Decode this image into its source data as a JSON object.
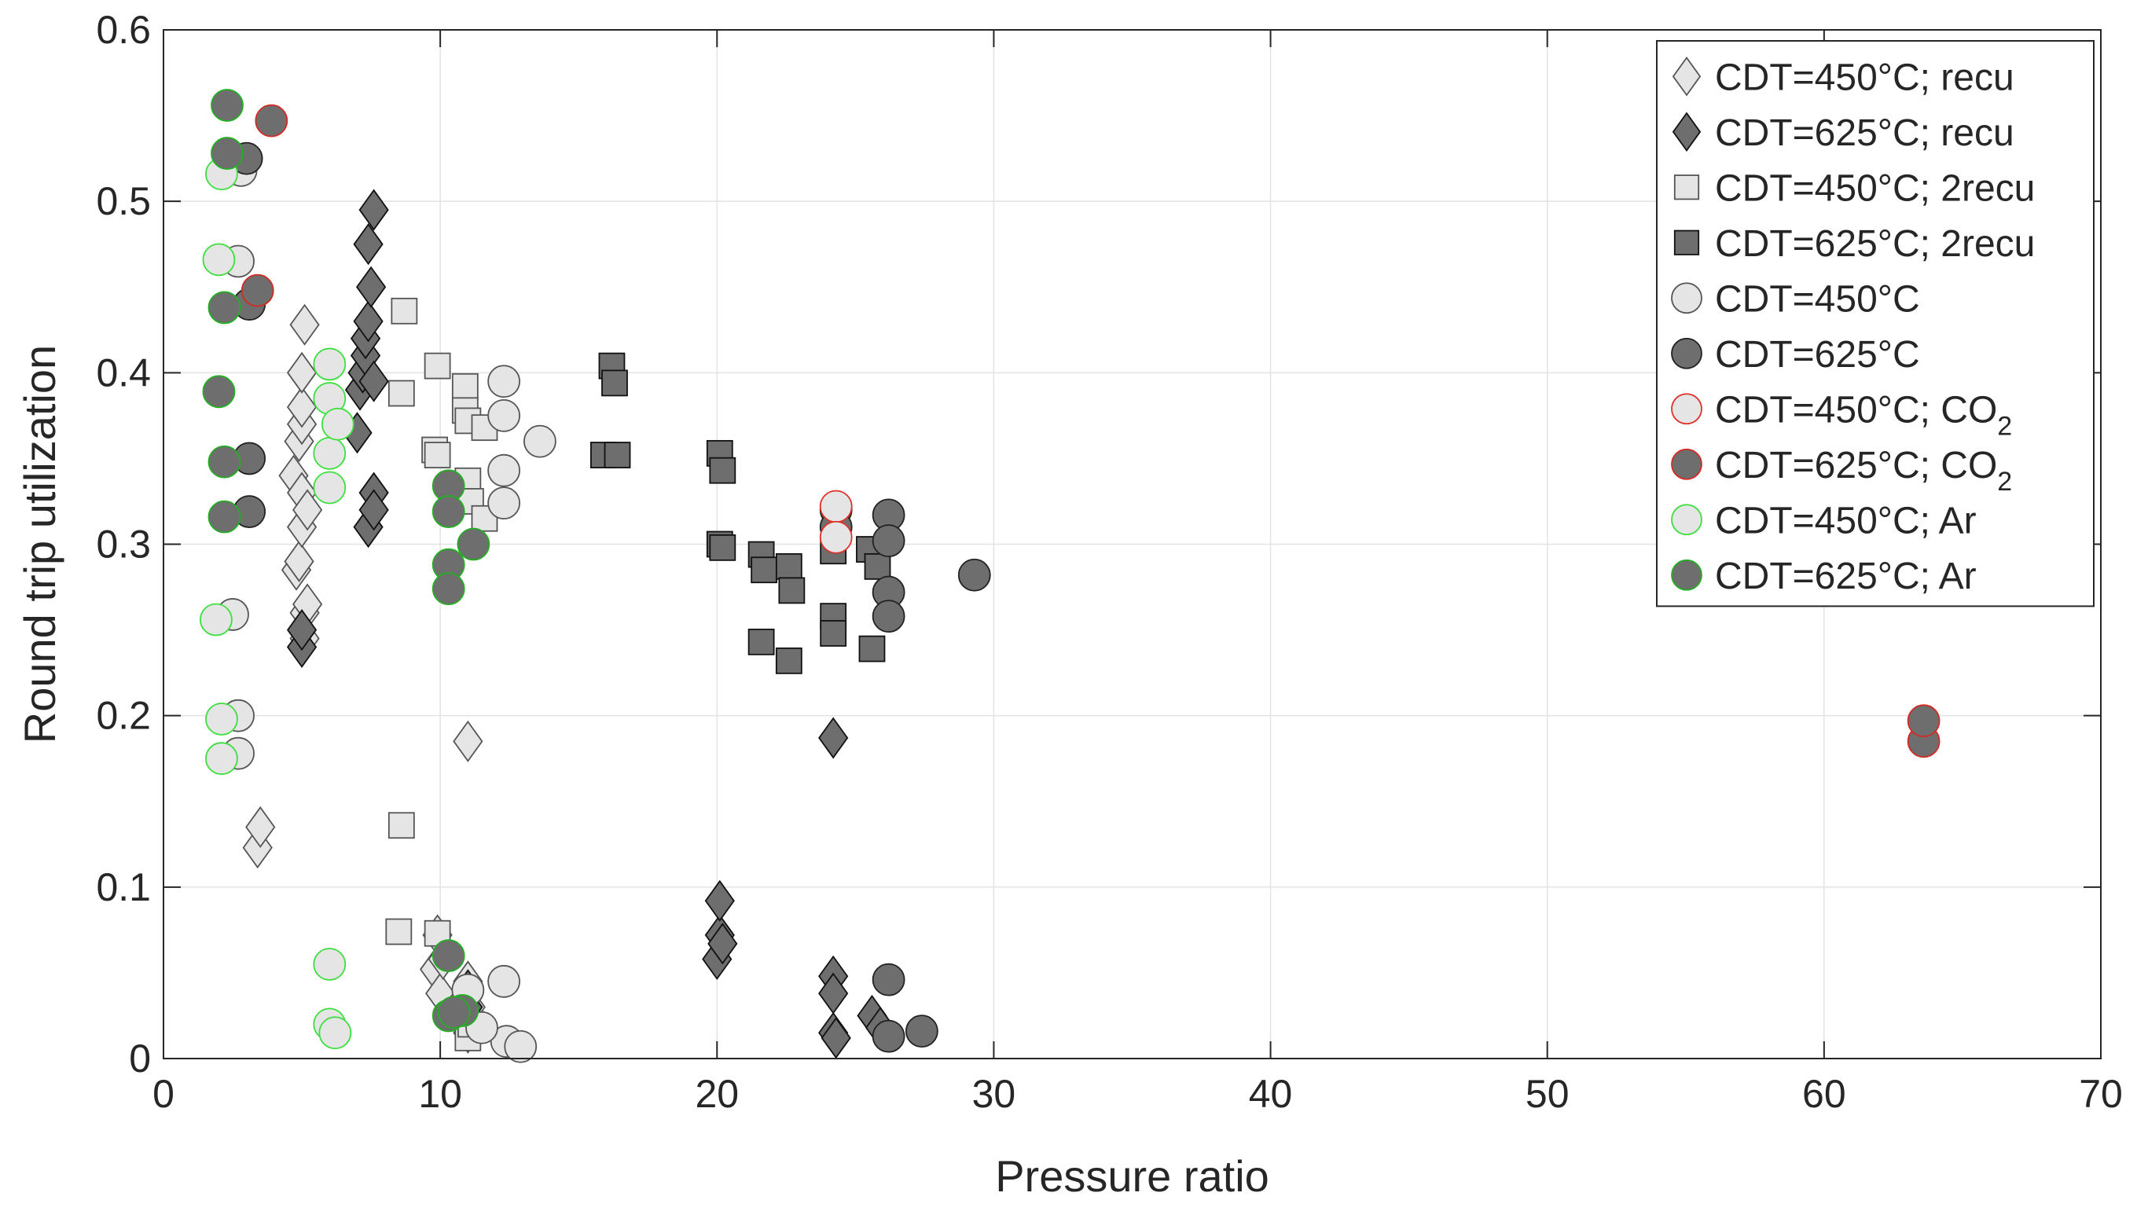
{
  "chart_data": {
    "type": "scatter",
    "title": "",
    "xlabel": "Pressure ratio",
    "ylabel": "Round trip utilization",
    "xlim": [
      0,
      70
    ],
    "ylim": [
      0,
      0.6
    ],
    "grid": true,
    "legend_position": "top-right",
    "x_ticks": [
      {
        "value": 0,
        "label": "0"
      },
      {
        "value": 10,
        "label": "10"
      },
      {
        "value": 20,
        "label": "20"
      },
      {
        "value": 30,
        "label": "30"
      },
      {
        "value": 40,
        "label": "40"
      },
      {
        "value": 50,
        "label": "50"
      },
      {
        "value": 60,
        "label": "60"
      },
      {
        "value": 70,
        "label": "70"
      }
    ],
    "y_ticks": [
      {
        "value": 0,
        "label": "0"
      },
      {
        "value": 0.1,
        "label": "0.1"
      },
      {
        "value": 0.2,
        "label": "0.2"
      },
      {
        "value": 0.3,
        "label": "0.3"
      },
      {
        "value": 0.4,
        "label": "0.4"
      },
      {
        "value": 0.5,
        "label": "0.5"
      },
      {
        "value": 0.6,
        "label": "0.6"
      }
    ],
    "series": [
      {
        "name": "CDT=450°C; recu",
        "label": "CDT=450°C; recu",
        "sub": "",
        "marker": "diamond",
        "fill": "#e5e5e5",
        "edge": "#555555",
        "points": [
          [
            3.4,
            0.123
          ],
          [
            3.5,
            0.135
          ],
          [
            4.7,
            0.34
          ],
          [
            4.8,
            0.285
          ],
          [
            4.9,
            0.36
          ],
          [
            4.9,
            0.29
          ],
          [
            5.0,
            0.31
          ],
          [
            5.0,
            0.33
          ],
          [
            5.0,
            0.37
          ],
          [
            5.0,
            0.38
          ],
          [
            5.0,
            0.4
          ],
          [
            5.1,
            0.245
          ],
          [
            5.1,
            0.26
          ],
          [
            5.2,
            0.32
          ],
          [
            5.2,
            0.265
          ],
          [
            5.1,
            0.428
          ],
          [
            9.8,
            0.052
          ],
          [
            9.9,
            0.072
          ],
          [
            10.0,
            0.038
          ],
          [
            10.1,
            0.058
          ],
          [
            11.0,
            0.185
          ],
          [
            11.0,
            0.045
          ],
          [
            11.1,
            0.03
          ],
          [
            11.0,
            0.015
          ],
          [
            11.2,
            0.02
          ]
        ]
      },
      {
        "name": "CDT=625°C; recu",
        "label": "CDT=625°C; recu",
        "sub": "",
        "marker": "diamond",
        "fill": "#6e6e6e",
        "edge": "#111111",
        "points": [
          [
            5.0,
            0.24
          ],
          [
            5.0,
            0.25
          ],
          [
            7.0,
            0.365
          ],
          [
            7.1,
            0.39
          ],
          [
            7.2,
            0.4
          ],
          [
            7.3,
            0.41
          ],
          [
            7.3,
            0.42
          ],
          [
            7.4,
            0.43
          ],
          [
            7.4,
            0.475
          ],
          [
            7.4,
            0.31
          ],
          [
            7.5,
            0.45
          ],
          [
            7.6,
            0.495
          ],
          [
            7.6,
            0.33
          ],
          [
            7.6,
            0.32
          ],
          [
            7.6,
            0.395
          ],
          [
            11.0,
            0.04
          ],
          [
            11.0,
            0.03
          ],
          [
            20.0,
            0.058
          ],
          [
            20.1,
            0.072
          ],
          [
            20.1,
            0.092
          ],
          [
            20.2,
            0.067
          ],
          [
            24.2,
            0.187
          ],
          [
            24.2,
            0.048
          ],
          [
            24.2,
            0.038
          ],
          [
            24.2,
            0.015
          ],
          [
            24.3,
            0.012
          ],
          [
            25.6,
            0.025
          ],
          [
            25.9,
            0.018
          ]
        ]
      },
      {
        "name": "CDT=450°C; 2recu",
        "label": "CDT=450°C; 2recu",
        "sub": "",
        "marker": "square",
        "fill": "#e5e5e5",
        "edge": "#555555",
        "points": [
          [
            8.5,
            0.074
          ],
          [
            8.6,
            0.136
          ],
          [
            8.6,
            0.388
          ],
          [
            8.7,
            0.436
          ],
          [
            9.8,
            0.355
          ],
          [
            9.9,
            0.404
          ],
          [
            9.9,
            0.352
          ],
          [
            9.9,
            0.073
          ],
          [
            10.9,
            0.392
          ],
          [
            10.9,
            0.378
          ],
          [
            11.0,
            0.372
          ],
          [
            11.0,
            0.337
          ],
          [
            11.0,
            0.012
          ],
          [
            11.1,
            0.325
          ],
          [
            11.6,
            0.315
          ],
          [
            11.6,
            0.368
          ],
          [
            11.1,
            0.02
          ]
        ]
      },
      {
        "name": "CDT=625°C; 2recu",
        "label": "CDT=625°C; 2recu",
        "sub": "",
        "marker": "square",
        "fill": "#6e6e6e",
        "edge": "#111111",
        "points": [
          [
            15.9,
            0.352
          ],
          [
            16.2,
            0.404
          ],
          [
            16.3,
            0.394
          ],
          [
            16.4,
            0.352
          ],
          [
            20.1,
            0.353
          ],
          [
            20.1,
            0.3
          ],
          [
            20.2,
            0.298
          ],
          [
            20.2,
            0.343
          ],
          [
            21.6,
            0.294
          ],
          [
            21.6,
            0.243
          ],
          [
            21.7,
            0.285
          ],
          [
            22.6,
            0.287
          ],
          [
            22.6,
            0.232
          ],
          [
            22.7,
            0.273
          ],
          [
            24.2,
            0.296
          ],
          [
            24.2,
            0.258
          ],
          [
            24.2,
            0.248
          ],
          [
            25.5,
            0.297
          ],
          [
            25.6,
            0.239
          ],
          [
            25.8,
            0.287
          ]
        ]
      },
      {
        "name": "CDT=450°C",
        "label": "CDT=450°C",
        "sub": "",
        "marker": "circle",
        "fill": "#e5e5e5",
        "edge": "#555555",
        "points": [
          [
            2.5,
            0.259
          ],
          [
            2.7,
            0.465
          ],
          [
            2.7,
            0.2
          ],
          [
            2.7,
            0.178
          ],
          [
            2.8,
            0.518
          ],
          [
            12.3,
            0.395
          ],
          [
            12.3,
            0.375
          ],
          [
            12.3,
            0.343
          ],
          [
            12.3,
            0.324
          ],
          [
            13.6,
            0.36
          ],
          [
            12.3,
            0.045
          ],
          [
            12.4,
            0.01
          ],
          [
            12.9,
            0.007
          ],
          [
            10.8,
            0.03
          ],
          [
            11.5,
            0.018
          ],
          [
            11.0,
            0.04
          ]
        ]
      },
      {
        "name": "CDT=625°C",
        "label": "CDT=625°C",
        "sub": "",
        "marker": "circle",
        "fill": "#6e6e6e",
        "edge": "#222222",
        "points": [
          [
            3.0,
            0.525
          ],
          [
            3.1,
            0.44
          ],
          [
            3.1,
            0.35
          ],
          [
            3.1,
            0.319
          ],
          [
            24.3,
            0.32
          ],
          [
            24.3,
            0.31
          ],
          [
            26.2,
            0.317
          ],
          [
            26.2,
            0.302
          ],
          [
            26.2,
            0.272
          ],
          [
            26.2,
            0.258
          ],
          [
            29.3,
            0.282
          ],
          [
            26.2,
            0.046
          ],
          [
            26.2,
            0.013
          ],
          [
            27.4,
            0.016
          ]
        ]
      },
      {
        "name": "CDT=450°C; CO2",
        "label": "CDT=450°C; CO",
        "sub": "2",
        "marker": "circle",
        "fill": "#e5e5e5",
        "edge": "#e0302a",
        "points": [
          [
            24.3,
            0.322
          ],
          [
            24.3,
            0.304
          ]
        ]
      },
      {
        "name": "CDT=625°C; CO2",
        "label": "CDT=625°C; CO",
        "sub": "2",
        "marker": "circle",
        "fill": "#6e6e6e",
        "edge": "#d42a24",
        "points": [
          [
            3.4,
            0.448
          ],
          [
            3.9,
            0.547
          ],
          [
            63.6,
            0.185
          ],
          [
            63.6,
            0.197
          ]
        ]
      },
      {
        "name": "CDT=450°C; Ar",
        "label": "CDT=450°C; Ar",
        "sub": "",
        "marker": "circle",
        "fill": "#e5e5e5",
        "edge": "#3ce03c",
        "points": [
          [
            1.9,
            0.256
          ],
          [
            2.0,
            0.466
          ],
          [
            2.1,
            0.516
          ],
          [
            2.1,
            0.198
          ],
          [
            2.1,
            0.175
          ],
          [
            6.0,
            0.405
          ],
          [
            6.0,
            0.385
          ],
          [
            6.0,
            0.353
          ],
          [
            6.0,
            0.333
          ],
          [
            6.3,
            0.37
          ],
          [
            6.0,
            0.055
          ],
          [
            6.0,
            0.02
          ],
          [
            6.2,
            0.015
          ]
        ]
      },
      {
        "name": "CDT=625°C; Ar",
        "label": "CDT=625°C; Ar",
        "sub": "",
        "marker": "circle",
        "fill": "#6e6e6e",
        "edge": "#22b022",
        "points": [
          [
            2.0,
            0.389
          ],
          [
            2.2,
            0.438
          ],
          [
            2.2,
            0.348
          ],
          [
            2.2,
            0.316
          ],
          [
            2.3,
            0.528
          ],
          [
            2.3,
            0.556
          ],
          [
            10.3,
            0.334
          ],
          [
            10.3,
            0.319
          ],
          [
            10.3,
            0.288
          ],
          [
            10.3,
            0.274
          ],
          [
            11.2,
            0.3
          ],
          [
            10.3,
            0.06
          ],
          [
            10.3,
            0.025
          ],
          [
            10.8,
            0.028
          ],
          [
            10.5,
            0.027
          ]
        ]
      }
    ]
  }
}
